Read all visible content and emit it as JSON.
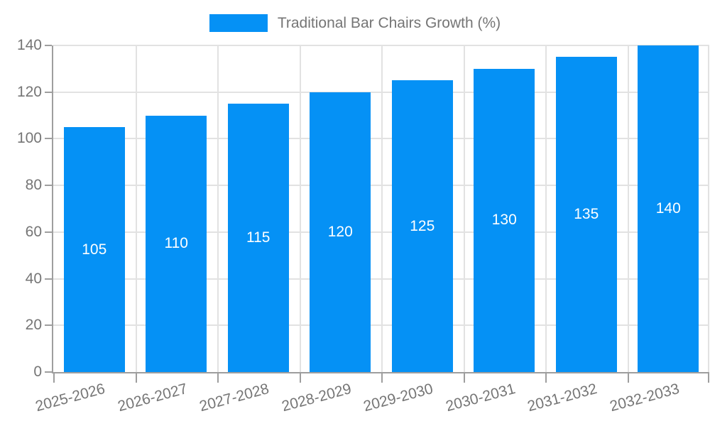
{
  "chart_data": {
    "type": "bar",
    "legend_label": "Traditional Bar Chairs Growth (%)",
    "categories": [
      "2025-2026",
      "2026-2027",
      "2027-2028",
      "2028-2029",
      "2029-2030",
      "2030-2031",
      "2031-2032",
      "2032-2033"
    ],
    "values": [
      105,
      110,
      115,
      120,
      125,
      130,
      135,
      140
    ],
    "data_labels": [
      "105",
      "110",
      "115",
      "120",
      "125",
      "130",
      "135",
      "140"
    ],
    "ytick_labels": [
      "0",
      "20",
      "40",
      "60",
      "80",
      "100",
      "120",
      "140"
    ],
    "ylim": [
      0,
      140
    ],
    "ytick_step": 20,
    "grid": "on",
    "legend_position": "top-center",
    "xlabel_rotation_deg": -15
  },
  "colors": {
    "bar_fill": "#0591f5",
    "bar_value_text": "#ffffff",
    "axis_line": "#9e9e9e",
    "gridline": "#e2e2e2",
    "tick_text": "#757575",
    "legend_text": "#757575",
    "background": "#ffffff"
  }
}
